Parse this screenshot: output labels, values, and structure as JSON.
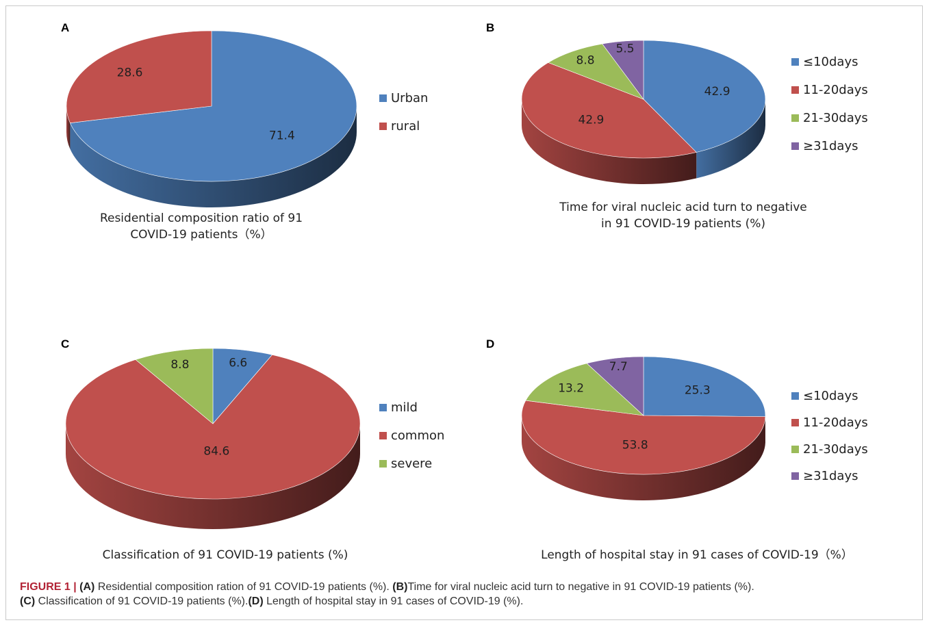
{
  "figure": {
    "caption": {
      "label": "FIGURE 1 |",
      "parts": [
        {
          "tag": "(A)",
          "text": " Residential composition ration of 91 COVID-19 patients (%). "
        },
        {
          "tag": "(B)",
          "text": "Time for viral nucleic acid turn to negative in 91 COVID-19 patients (%)."
        },
        {
          "tag": "(C)",
          "text": " Classification of 91 COVID-19 patients (%)."
        },
        {
          "tag": "(D)",
          "text": " Length of hospital stay in 91 cases of COVID-19 (%)."
        }
      ]
    }
  },
  "colors": {
    "blue": "#4f81bd",
    "red": "#c0504d",
    "green": "#9bbb59",
    "purple": "#8064a2"
  },
  "chart_data": [
    {
      "type": "pie",
      "panel": "A",
      "title_lines": [
        "Residential composition ratio of 91",
        "COVID-19 patients（%）"
      ],
      "slices": [
        {
          "label": "Urban",
          "value": 71.4,
          "display": "71.4",
          "color": "#4f81bd"
        },
        {
          "label": "rural",
          "value": 28.6,
          "display": "28.6",
          "color": "#c0504d"
        }
      ],
      "legend": "right"
    },
    {
      "type": "pie",
      "panel": "B",
      "title_lines": [
        "Time for viral nucleic acid turn to negative",
        "in 91 COVID-19 patients (%)"
      ],
      "slices": [
        {
          "label": "≤10days",
          "value": 42.9,
          "display": "42.9",
          "color": "#4f81bd"
        },
        {
          "label": "11-20days",
          "value": 42.9,
          "display": "42.9",
          "color": "#c0504d"
        },
        {
          "label": "21-30days",
          "value": 8.8,
          "display": "8.8",
          "color": "#9bbb59"
        },
        {
          "label": "≥31days",
          "value": 5.5,
          "display": "5.5",
          "color": "#8064a2"
        }
      ],
      "legend": "right"
    },
    {
      "type": "pie",
      "panel": "C",
      "title_lines": [
        "Classification of 91 COVID-19 patients (%)"
      ],
      "slices": [
        {
          "label": "mild",
          "value": 6.6,
          "display": "6.6",
          "color": "#4f81bd"
        },
        {
          "label": "common",
          "value": 84.6,
          "display": "84.6",
          "color": "#c0504d"
        },
        {
          "label": "severe",
          "value": 8.8,
          "display": "8.8",
          "color": "#9bbb59"
        }
      ],
      "legend": "right"
    },
    {
      "type": "pie",
      "panel": "D",
      "title_lines": [
        "Length  of hospital stay in 91 cases of COVID-19（%）"
      ],
      "slices": [
        {
          "label": "≤10days",
          "value": 25.3,
          "display": "25.3",
          "color": "#4f81bd"
        },
        {
          "label": "11-20days",
          "value": 53.8,
          "display": "53.8",
          "color": "#c0504d"
        },
        {
          "label": "21-30days",
          "value": 13.2,
          "display": "13.2",
          "color": "#9bbb59"
        },
        {
          "label": "≥31days",
          "value": 7.7,
          "display": "7.7",
          "color": "#8064a2"
        }
      ],
      "legend": "right"
    }
  ]
}
